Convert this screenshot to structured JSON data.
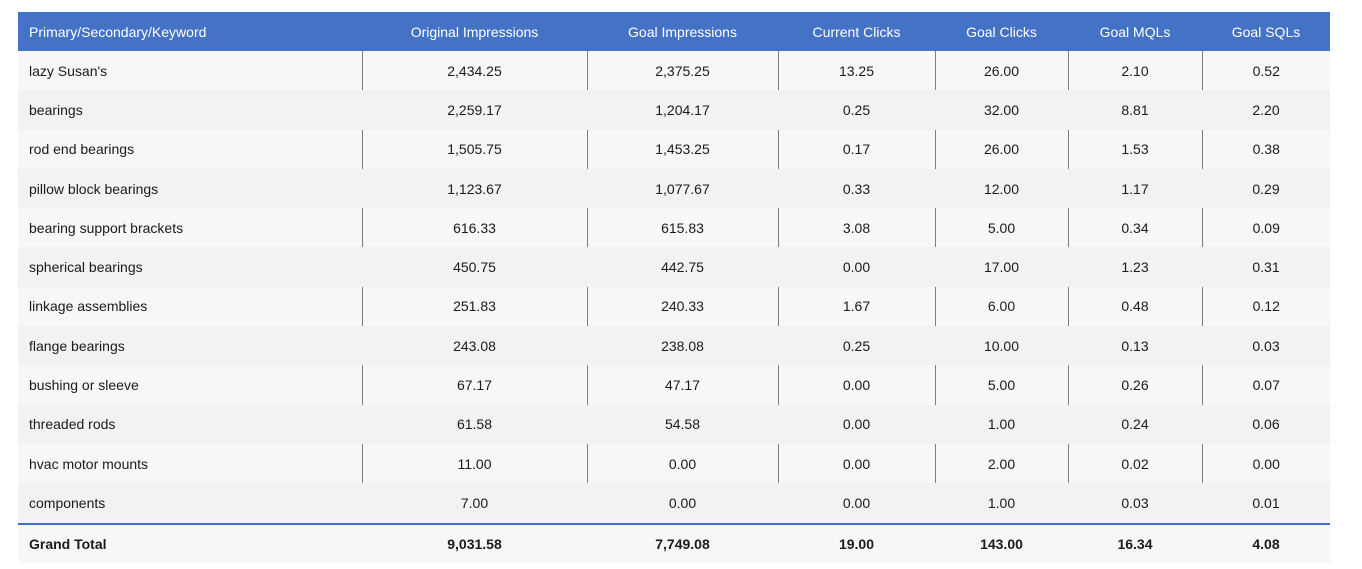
{
  "table": {
    "headers": [
      "Primary/Secondary/Keyword",
      "Original Impressions",
      "Goal Impressions",
      "Current Clicks",
      "Goal Clicks",
      "Goal MQLs",
      "Goal SQLs"
    ],
    "rows": [
      [
        "lazy Susan's",
        "2,434.25",
        "2,375.25",
        "13.25",
        "26.00",
        "2.10",
        "0.52"
      ],
      [
        "bearings",
        "2,259.17",
        "1,204.17",
        "0.25",
        "32.00",
        "8.81",
        "2.20"
      ],
      [
        "rod end bearings",
        "1,505.75",
        "1,453.25",
        "0.17",
        "26.00",
        "1.53",
        "0.38"
      ],
      [
        "pillow block bearings",
        "1,123.67",
        "1,077.67",
        "0.33",
        "12.00",
        "1.17",
        "0.29"
      ],
      [
        "bearing support brackets",
        "616.33",
        "615.83",
        "3.08",
        "5.00",
        "0.34",
        "0.09"
      ],
      [
        "spherical bearings",
        "450.75",
        "442.75",
        "0.00",
        "17.00",
        "1.23",
        "0.31"
      ],
      [
        "linkage assemblies",
        "251.83",
        "240.33",
        "1.67",
        "6.00",
        "0.48",
        "0.12"
      ],
      [
        "flange bearings",
        "243.08",
        "238.08",
        "0.25",
        "10.00",
        "0.13",
        "0.03"
      ],
      [
        "bushing or sleeve",
        "67.17",
        "47.17",
        "0.00",
        "5.00",
        "0.26",
        "0.07"
      ],
      [
        "threaded rods",
        "61.58",
        "54.58",
        "0.00",
        "1.00",
        "0.24",
        "0.06"
      ],
      [
        "hvac motor mounts",
        "11.00",
        "0.00",
        "0.00",
        "2.00",
        "0.02",
        "0.00"
      ],
      [
        "components",
        "7.00",
        "0.00",
        "0.00",
        "1.00",
        "0.03",
        "0.01"
      ]
    ],
    "total": [
      "Grand Total",
      "9,031.58",
      "7,749.08",
      "19.00",
      "143.00",
      "16.34",
      "4.08"
    ]
  },
  "colors": {
    "header_bg": "#4472c4",
    "header_text": "#ffffff",
    "row_bg": "#f7f7f7",
    "row_alt_bg": "#f2f2f2",
    "total_border": "#4472c4"
  }
}
